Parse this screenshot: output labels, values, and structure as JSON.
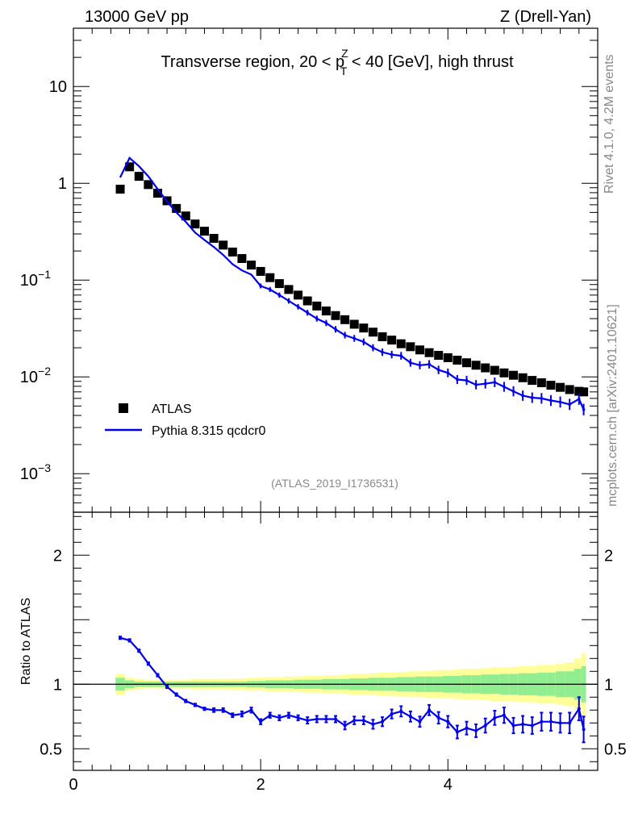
{
  "header": {
    "left": "13000 GeV pp",
    "right": "Z (Drell-Yan)"
  },
  "side_labels": {
    "rivet": "Rivet 4.1.0,  4.2M events",
    "mcplots": "mcplots.cern.ch [arXiv:2401.10621]"
  },
  "colors": {
    "atlas": "#000000",
    "pythia": "#0000ee",
    "band_inner": "#90ee90",
    "band_outer": "#ffff99"
  },
  "chart_data": [
    {
      "type": "scatter",
      "title": "Transverse region, 20 < p",
      "title_sup": "Z",
      "title_sub": "T",
      "title_tail": " < 40 [GeV], high thrust",
      "yscale": "log",
      "xlim": [
        0,
        5.6
      ],
      "ylim": [
        0.0004,
        40
      ],
      "xlabel": "",
      "ylabel": "",
      "yticks": [
        {
          "value": 10,
          "base": "10",
          "exp": ""
        },
        {
          "value": 1,
          "base": "1",
          "exp": ""
        },
        {
          "value": 0.1,
          "base": "10",
          "exp": "−1"
        },
        {
          "value": 0.01,
          "base": "10",
          "exp": "−2"
        },
        {
          "value": 0.001,
          "base": "10",
          "exp": "−3"
        }
      ],
      "legend_position": "middle-left",
      "watermark": "(ATLAS_2019_I1736531)",
      "x": [
        0.5,
        0.6,
        0.7,
        0.8,
        0.9,
        1.0,
        1.1,
        1.2,
        1.3,
        1.4,
        1.5,
        1.6,
        1.7,
        1.8,
        1.9,
        2.0,
        2.1,
        2.2,
        2.3,
        2.4,
        2.5,
        2.6,
        2.7,
        2.8,
        2.9,
        3.0,
        3.1,
        3.2,
        3.3,
        3.4,
        3.5,
        3.6,
        3.7,
        3.8,
        3.9,
        4.0,
        4.1,
        4.2,
        4.3,
        4.4,
        4.5,
        4.6,
        4.7,
        4.8,
        4.9,
        5.0,
        5.1,
        5.2,
        5.3,
        5.4,
        5.45
      ],
      "series": [
        {
          "name": "ATLAS",
          "style": "markers",
          "values": [
            0.87,
            1.48,
            1.18,
            0.97,
            0.79,
            0.66,
            0.55,
            0.46,
            0.38,
            0.32,
            0.27,
            0.23,
            0.195,
            0.167,
            0.143,
            0.123,
            0.106,
            0.092,
            0.08,
            0.07,
            0.061,
            0.054,
            0.048,
            0.043,
            0.039,
            0.035,
            0.032,
            0.029,
            0.026,
            0.024,
            0.022,
            0.0205,
            0.019,
            0.0178,
            0.0167,
            0.0158,
            0.0149,
            0.014,
            0.0132,
            0.0124,
            0.0117,
            0.011,
            0.0104,
            0.0098,
            0.0092,
            0.0087,
            0.0082,
            0.0078,
            0.0074,
            0.0071,
            0.007
          ]
        },
        {
          "name": "Pythia 8.315 qcdcr0",
          "style": "line",
          "values": [
            1.15,
            1.83,
            1.5,
            1.18,
            0.87,
            0.65,
            0.5,
            0.4,
            0.31,
            0.26,
            0.22,
            0.182,
            0.146,
            0.126,
            0.114,
            0.087,
            0.08,
            0.07,
            0.061,
            0.053,
            0.046,
            0.04,
            0.036,
            0.031,
            0.027,
            0.025,
            0.023,
            0.02,
            0.018,
            0.017,
            0.0165,
            0.014,
            0.0132,
            0.0135,
            0.0118,
            0.011,
            0.0094,
            0.0092,
            0.0083,
            0.0085,
            0.0088,
            0.0079,
            0.0071,
            0.0064,
            0.0061,
            0.006,
            0.0057,
            0.0055,
            0.0052,
            0.0059,
            0.0046
          ]
        }
      ]
    },
    {
      "type": "line",
      "ylabel": "Ratio to ATLAS",
      "xlim": [
        0,
        5.6
      ],
      "ylim": [
        0.333,
        2.333
      ],
      "xticks": [
        {
          "value": 0,
          "label": "0"
        },
        {
          "value": 2,
          "label": "2"
        },
        {
          "value": 4,
          "label": "4"
        }
      ],
      "yticks": [
        {
          "value": 2,
          "label": "2"
        },
        {
          "value": 1,
          "label": "1"
        },
        {
          "value": 0.5,
          "label": "0.5"
        }
      ],
      "x": [
        0.5,
        0.6,
        0.7,
        0.8,
        0.9,
        1.0,
        1.1,
        1.2,
        1.3,
        1.4,
        1.5,
        1.6,
        1.7,
        1.8,
        1.9,
        2.0,
        2.1,
        2.2,
        2.3,
        2.4,
        2.5,
        2.6,
        2.7,
        2.8,
        2.9,
        3.0,
        3.1,
        3.2,
        3.3,
        3.4,
        3.5,
        3.6,
        3.7,
        3.8,
        3.9,
        4.0,
        4.1,
        4.2,
        4.3,
        4.4,
        4.5,
        4.6,
        4.7,
        4.8,
        4.9,
        5.0,
        5.1,
        5.2,
        5.3,
        5.4,
        5.45
      ],
      "ratio": [
        1.36,
        1.34,
        1.26,
        1.16,
        1.07,
        0.98,
        0.92,
        0.87,
        0.84,
        0.81,
        0.8,
        0.8,
        0.76,
        0.77,
        0.8,
        0.71,
        0.76,
        0.74,
        0.76,
        0.74,
        0.72,
        0.73,
        0.73,
        0.73,
        0.68,
        0.72,
        0.72,
        0.69,
        0.71,
        0.77,
        0.79,
        0.75,
        0.71,
        0.8,
        0.74,
        0.71,
        0.63,
        0.66,
        0.64,
        0.68,
        0.74,
        0.76,
        0.68,
        0.69,
        0.68,
        0.71,
        0.71,
        0.7,
        0.7,
        0.81,
        0.65
      ],
      "ratio_err": [
        0.01,
        0.01,
        0.01,
        0.01,
        0.01,
        0.01,
        0.01,
        0.01,
        0.01,
        0.01,
        0.015,
        0.015,
        0.015,
        0.02,
        0.02,
        0.02,
        0.02,
        0.02,
        0.02,
        0.02,
        0.025,
        0.025,
        0.025,
        0.025,
        0.03,
        0.03,
        0.03,
        0.035,
        0.035,
        0.035,
        0.04,
        0.04,
        0.04,
        0.04,
        0.045,
        0.045,
        0.05,
        0.05,
        0.05,
        0.055,
        0.055,
        0.06,
        0.06,
        0.065,
        0.065,
        0.07,
        0.07,
        0.075,
        0.08,
        0.09,
        0.1
      ],
      "band_inner": [
        0.05,
        0.03,
        0.02,
        0.02,
        0.02,
        0.02,
        0.02,
        0.02,
        0.02,
        0.02,
        0.02,
        0.02,
        0.02,
        0.02,
        0.025,
        0.025,
        0.03,
        0.03,
        0.03,
        0.035,
        0.035,
        0.035,
        0.04,
        0.04,
        0.04,
        0.045,
        0.045,
        0.05,
        0.05,
        0.05,
        0.055,
        0.055,
        0.06,
        0.06,
        0.06,
        0.065,
        0.065,
        0.07,
        0.07,
        0.075,
        0.075,
        0.08,
        0.08,
        0.085,
        0.085,
        0.09,
        0.09,
        0.1,
        0.1,
        0.12,
        0.14
      ],
      "band_outer": [
        0.08,
        0.05,
        0.04,
        0.035,
        0.035,
        0.035,
        0.035,
        0.035,
        0.04,
        0.04,
        0.04,
        0.04,
        0.045,
        0.045,
        0.05,
        0.05,
        0.055,
        0.055,
        0.06,
        0.06,
        0.065,
        0.065,
        0.07,
        0.07,
        0.075,
        0.08,
        0.08,
        0.085,
        0.09,
        0.09,
        0.095,
        0.1,
        0.1,
        0.105,
        0.11,
        0.11,
        0.115,
        0.12,
        0.12,
        0.125,
        0.13,
        0.13,
        0.135,
        0.14,
        0.14,
        0.15,
        0.15,
        0.16,
        0.17,
        0.2,
        0.24
      ]
    }
  ]
}
